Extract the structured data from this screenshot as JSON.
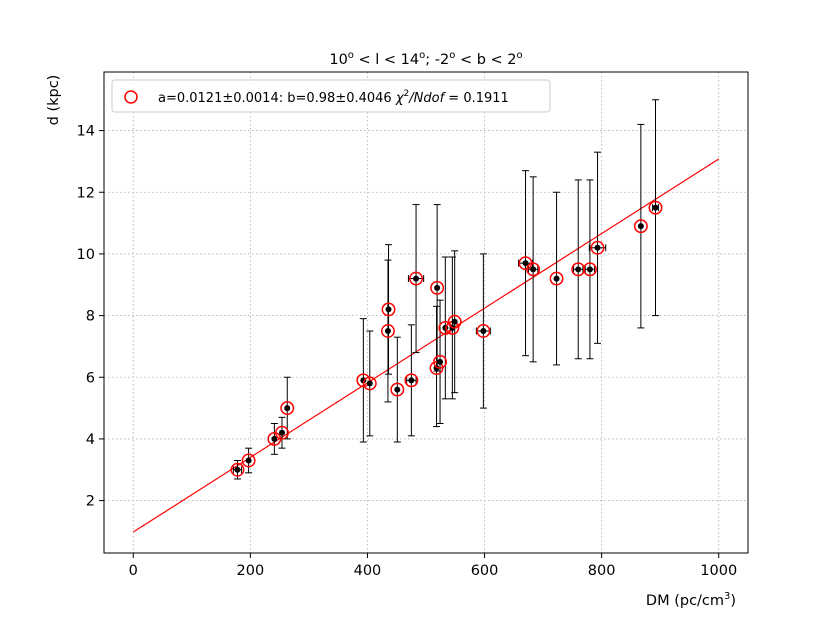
{
  "chart_data": {
    "type": "scatter",
    "title_parts": [
      "10",
      "o",
      " < l < 14",
      "o",
      "; -2",
      "o",
      " < b < 2",
      "o"
    ],
    "xlabel": "DM (pc/cm",
    "xlabel_sup": "3",
    "xlabel_tail": ")",
    "ylabel": "d (kpc)",
    "xlim": [
      -50,
      1050
    ],
    "ylim": [
      0.3,
      15.9
    ],
    "xticks": [
      0,
      200,
      400,
      600,
      800,
      1000
    ],
    "yticks": [
      2,
      4,
      6,
      8,
      10,
      12,
      14
    ],
    "grid": true,
    "legend_position": "upper-left",
    "legend": {
      "prefix": "a=0.0121±0.0014: b=0.98±0.4046 ",
      "chi": "χ",
      "chi_sup": "2",
      "ndof": "/Ndof",
      "suffix": " = 0.1911"
    },
    "fit": {
      "slope": 0.0121,
      "intercept": 0.98,
      "x_range": [
        0,
        1000
      ],
      "color": "#ff0000"
    },
    "colors": {
      "marker_edge": "#ff0000",
      "marker_fill": "#000000",
      "errorbar": "#000000"
    },
    "points": [
      {
        "x": 178,
        "y": 3.0,
        "ylo": 2.7,
        "yhi": 3.3,
        "xerr": 7
      },
      {
        "x": 197,
        "y": 3.3,
        "ylo": 2.9,
        "yhi": 3.7,
        "xerr": 0
      },
      {
        "x": 241,
        "y": 4.0,
        "ylo": 3.5,
        "yhi": 4.5,
        "xerr": 0
      },
      {
        "x": 254,
        "y": 4.2,
        "ylo": 3.7,
        "yhi": 4.7,
        "xerr": 0
      },
      {
        "x": 263,
        "y": 5.0,
        "ylo": 4.0,
        "yhi": 6.0,
        "xerr": 0
      },
      {
        "x": 393,
        "y": 5.9,
        "ylo": 3.9,
        "yhi": 7.9,
        "xerr": 0
      },
      {
        "x": 404,
        "y": 5.8,
        "ylo": 4.1,
        "yhi": 7.5,
        "xerr": 0
      },
      {
        "x": 435,
        "y": 7.5,
        "ylo": 5.2,
        "yhi": 9.8,
        "xerr": 0
      },
      {
        "x": 436,
        "y": 8.2,
        "ylo": 6.1,
        "yhi": 10.3,
        "xerr": 0
      },
      {
        "x": 451,
        "y": 5.6,
        "ylo": 3.9,
        "yhi": 7.3,
        "xerr": 0
      },
      {
        "x": 475,
        "y": 5.9,
        "ylo": 4.1,
        "yhi": 7.7,
        "xerr": 8
      },
      {
        "x": 483,
        "y": 9.2,
        "ylo": 6.8,
        "yhi": 11.6,
        "xerr": 13
      },
      {
        "x": 518,
        "y": 6.3,
        "ylo": 4.4,
        "yhi": 8.3,
        "xerr": 0
      },
      {
        "x": 519,
        "y": 8.9,
        "ylo": 6.2,
        "yhi": 11.6,
        "xerr": 0
      },
      {
        "x": 524,
        "y": 6.5,
        "ylo": 4.5,
        "yhi": 8.5,
        "xerr": 0
      },
      {
        "x": 533,
        "y": 7.6,
        "ylo": 5.3,
        "yhi": 9.9,
        "xerr": 0
      },
      {
        "x": 545,
        "y": 7.6,
        "ylo": 5.3,
        "yhi": 9.9,
        "xerr": 0
      },
      {
        "x": 549,
        "y": 7.8,
        "ylo": 5.5,
        "yhi": 10.1,
        "xerr": 0
      },
      {
        "x": 598,
        "y": 7.5,
        "ylo": 5.0,
        "yhi": 10.0,
        "xerr": 12
      },
      {
        "x": 670,
        "y": 9.7,
        "ylo": 6.7,
        "yhi": 12.7,
        "xerr": 12
      },
      {
        "x": 683,
        "y": 9.5,
        "ylo": 6.5,
        "yhi": 12.5,
        "xerr": 8
      },
      {
        "x": 723,
        "y": 9.2,
        "ylo": 6.4,
        "yhi": 12.0,
        "xerr": 0
      },
      {
        "x": 760,
        "y": 9.5,
        "ylo": 6.6,
        "yhi": 12.4,
        "xerr": 8
      },
      {
        "x": 780,
        "y": 9.5,
        "ylo": 6.6,
        "yhi": 12.4,
        "xerr": 8
      },
      {
        "x": 793,
        "y": 10.2,
        "ylo": 7.1,
        "yhi": 13.3,
        "xerr": 14
      },
      {
        "x": 867,
        "y": 10.9,
        "ylo": 7.6,
        "yhi": 14.2,
        "xerr": 0
      },
      {
        "x": 892,
        "y": 11.5,
        "ylo": 8.0,
        "yhi": 15.0,
        "xerr": 5
      }
    ]
  }
}
